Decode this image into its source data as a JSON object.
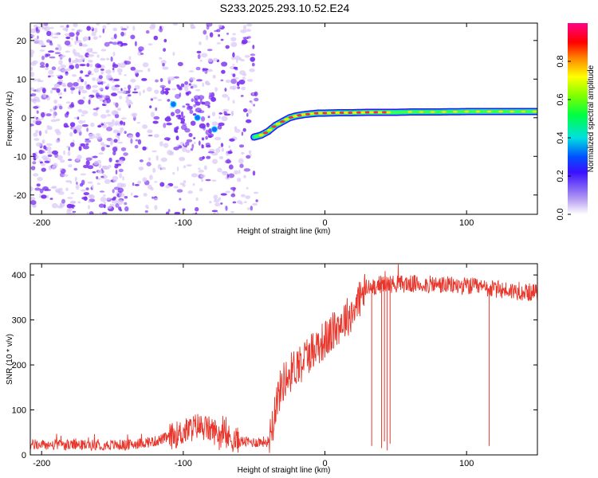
{
  "title": "S233.2025.293.10.52.E24",
  "colors": {
    "snr_line": "#e8372c",
    "scatter_strong": "#7a2ff0",
    "scatter_weak": "#d9c6f7",
    "ridge_core": "#ff2a3a",
    "ridge_mid": "#ffe600",
    "ridge_edge": "#00e0d0"
  },
  "chart_data": [
    {
      "type": "heatmap",
      "name": "spectrogram",
      "xlabel": "Height of straight line (km)",
      "ylabel": "Frequency (Hz)",
      "xlim": [
        -208,
        150
      ],
      "ylim": [
        -25,
        24.5
      ],
      "xticks": [
        -200,
        -100,
        0,
        100
      ],
      "yticks": [
        -20,
        -10,
        0,
        10,
        20
      ],
      "ridge": {
        "x": [
          -50,
          -45,
          -40,
          -35,
          -30,
          -25,
          -20,
          -15,
          -10,
          -5,
          0,
          10,
          20,
          30,
          40,
          50,
          60,
          70,
          80,
          100,
          120,
          150
        ],
        "y": [
          -5,
          -4.5,
          -3.5,
          -2,
          -1,
          0,
          0.5,
          0.8,
          1,
          1.2,
          1.2,
          1.3,
          1.3,
          1.4,
          1.4,
          1.4,
          1.5,
          1.5,
          1.5,
          1.6,
          1.6,
          1.6
        ]
      },
      "colorbar": {
        "label": "Normalized spectral amplitude",
        "range": [
          0,
          1
        ],
        "ticks": [
          0.0,
          0.2,
          0.4,
          0.6,
          0.8
        ],
        "tick_labels": [
          "0.0",
          "0.2",
          "0.4",
          "0.6",
          "0.8"
        ]
      }
    },
    {
      "type": "line",
      "name": "snr",
      "xlabel": "Height of straight line (km)",
      "ylabel": "SNR (10 * v/v)",
      "xlim": [
        -208,
        150
      ],
      "ylim": [
        0,
        425
      ],
      "xticks": [
        -200,
        -100,
        0,
        100
      ],
      "yticks": [
        0,
        100,
        200,
        300,
        400
      ],
      "trend": {
        "x": [
          -208,
          -140,
          -120,
          -100,
          -90,
          -80,
          -70,
          -60,
          -50,
          -40,
          -35,
          -30,
          -25,
          -20,
          -15,
          -10,
          -5,
          0,
          5,
          10,
          15,
          20,
          25,
          30,
          40,
          50,
          60,
          80,
          100,
          120,
          150
        ],
        "y": [
          22,
          22,
          30,
          50,
          65,
          55,
          40,
          30,
          28,
          30,
          110,
          160,
          180,
          200,
          215,
          230,
          245,
          255,
          270,
          290,
          305,
          320,
          350,
          370,
          380,
          380,
          380,
          378,
          375,
          368,
          360
        ]
      },
      "dropouts": [
        {
          "x": 33,
          "y": 20
        },
        {
          "x": 40,
          "y": 15
        },
        {
          "x": 42,
          "y": 30
        },
        {
          "x": 44,
          "y": 10
        },
        {
          "x": 46,
          "y": 25
        },
        {
          "x": 116,
          "y": 20
        }
      ]
    }
  ]
}
